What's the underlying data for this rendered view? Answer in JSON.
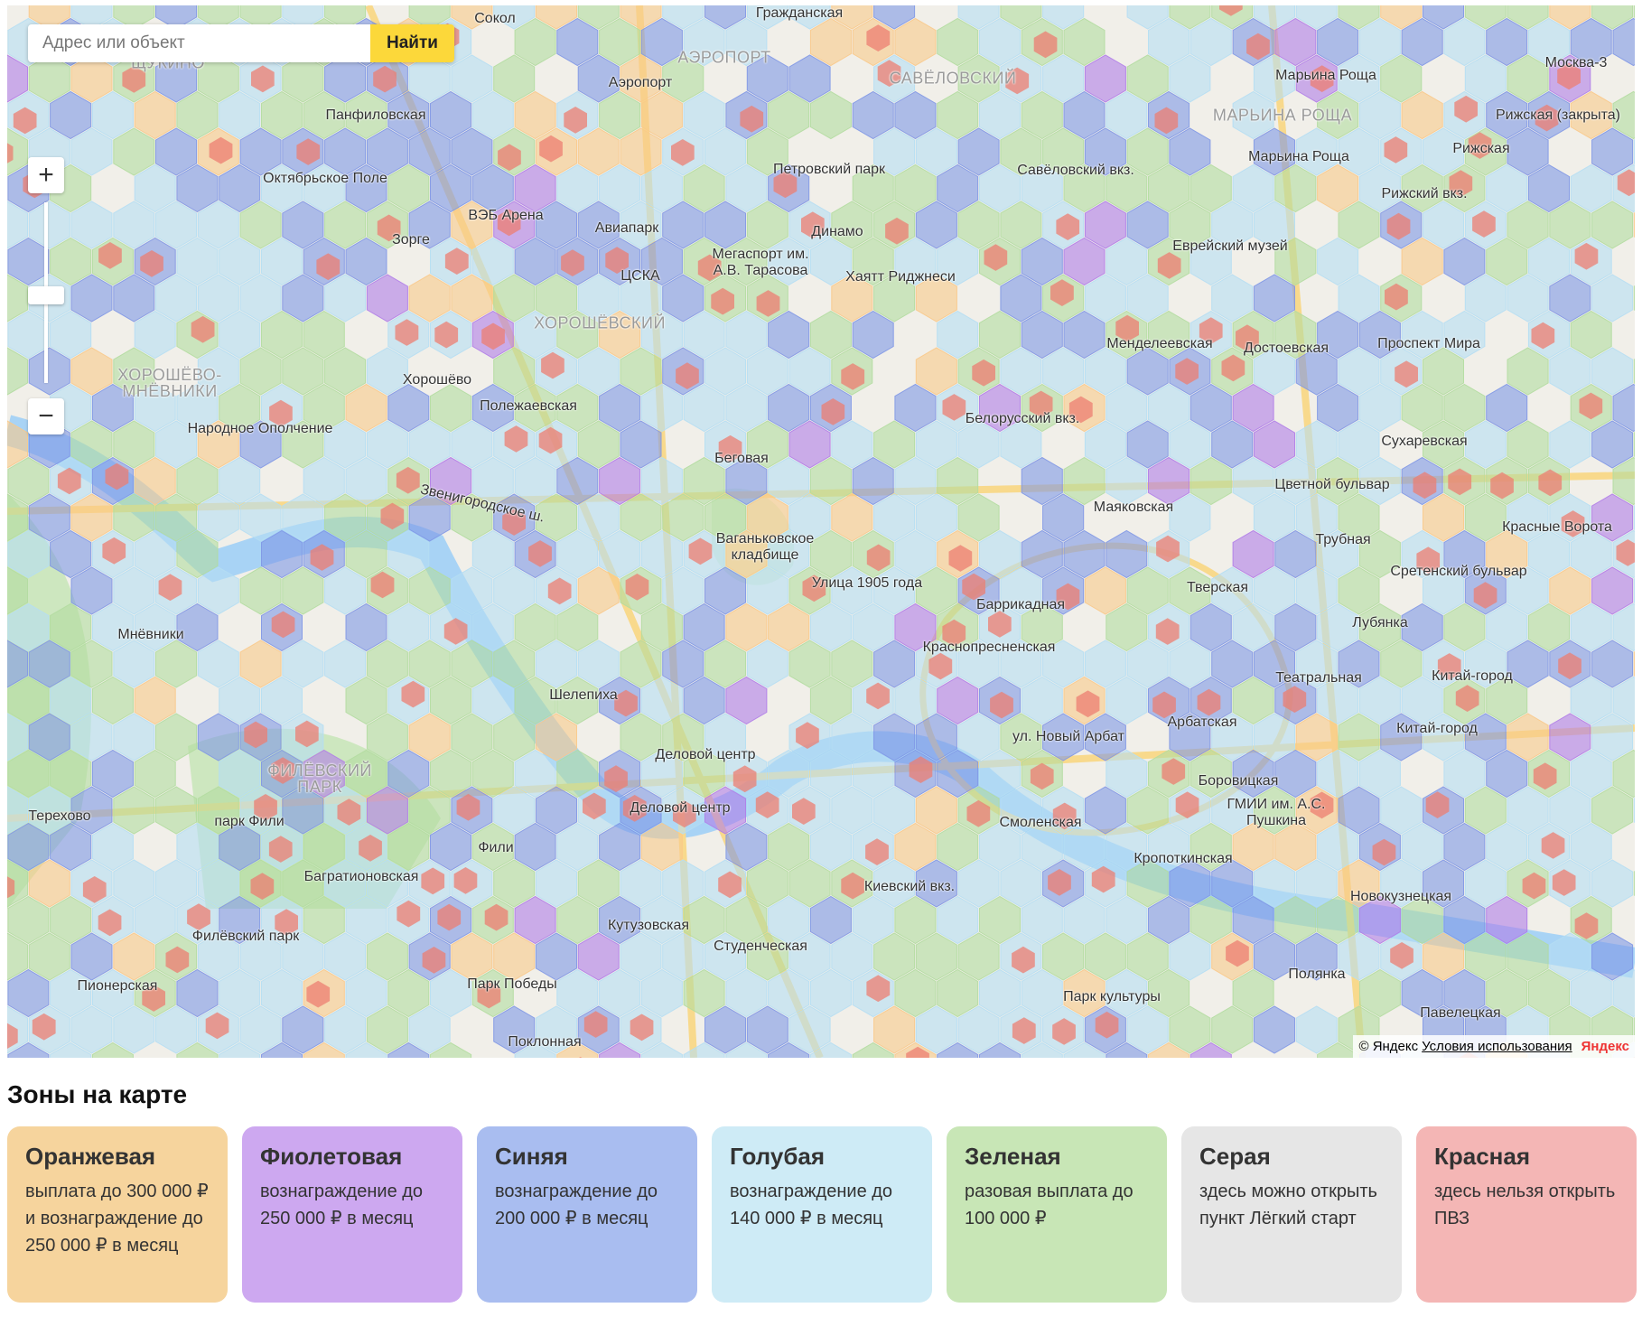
{
  "search": {
    "placeholder": "Адрес или объект",
    "button": "Найти"
  },
  "zoom": {
    "in": "+",
    "out": "−"
  },
  "map": {
    "labels": [
      "Гражданская",
      "Сокол",
      "ЩУКИНО",
      "АЭРОПОРТ",
      "Аэропорт",
      "Марьина Роща",
      "Москва-3",
      "Рижская (закрыта)",
      "Панфиловская",
      "САВЁЛОВСКИЙ",
      "МАРЬИНА РОЩА",
      "Марьина Роща",
      "Рижская",
      "Октябрьское Поле",
      "Петровский парк",
      "Савёловский вкз.",
      "Рижский вкз.",
      "ВЭБ Арена",
      "Авиапарк",
      "Зорге",
      "Динамо",
      "Мегаспорт им. А.В. Тарасова",
      "ЦСКА",
      "Хаятт Риджнеси",
      "Еврейский музей",
      "ХОРОШЁВСКИЙ",
      "Менделеевская",
      "Достоевская",
      "Проспект Мира",
      "ХОРОШЁВО-МНЁВНИКИ",
      "Хорошёво",
      "Полежаевская",
      "Белорусский вкз.",
      "Народное Ополчение",
      "Сухаревская",
      "Беговая",
      "Цветной бульвар",
      "Звенигородское ш.",
      "Маяковская",
      "Красные Ворота",
      "Ваганьковское кладбище",
      "Трубная",
      "Улица 1905 года",
      "Сретенский бульвар",
      "Тверская",
      "Баррикадная",
      "Мнёвники",
      "Лубянка",
      "Краснопресненская",
      "Театральная",
      "Китай-город",
      "Шелепиха",
      "Китай-город",
      "Арбатская",
      "ул. Новый Арбат",
      "Деловой центр",
      "Боровицкая",
      "Терехово",
      "ФИЛЁВСКИЙ ПАРК",
      "Деловой центр",
      "ГМИИ им. А.С. Пушкина",
      "парк Фили",
      "Смоленская",
      "Кропоткинская",
      "Фили",
      "Багратионовская",
      "Киевский вкз.",
      "Новокузнецкая",
      "Кутузовская",
      "Филёвский парк",
      "Студенческая",
      "Пионерская",
      "Парк Победы",
      "Парк культуры",
      "Полянка",
      "Павелецкая",
      "Поклонная"
    ],
    "copyright": "© Яндекс",
    "terms": "Условия использования",
    "logo": "Яндекс"
  },
  "legend": {
    "title": "Зоны на карте",
    "cards": [
      {
        "title": "Оранжевая",
        "text": "выплата до 300 000 ₽ и вознаграждение до 250 000 ₽ в месяц",
        "color": "#f6d49d",
        "hex": "#f9c98a"
      },
      {
        "title": "Фиолетовая",
        "text": "вознаграждение до 250 000 ₽ в месяц",
        "color": "#cda8f0",
        "hex": "#b07de8"
      },
      {
        "title": "Синяя",
        "text": "вознаграждение до 200 000 ₽ в месяц",
        "color": "#a9bdf0",
        "hex": "#7f97e6"
      },
      {
        "title": "Голубая",
        "text": "вознаграждение до 140 000 ₽ в месяц",
        "color": "#ceebf6",
        "hex": "#b5def3"
      },
      {
        "title": "Зеленая",
        "text": "разовая выплата до 100 000 ₽",
        "color": "#c8e6b6",
        "hex": "#b2dca0"
      },
      {
        "title": "Серая",
        "text": "здесь можно открыть пункт Лёгкий старт",
        "color": "#e6e6e6",
        "hex": "#d6d6d6"
      },
      {
        "title": "Красная",
        "text": "здесь нельзя открыть ПВЗ",
        "color": "#f4b6b5",
        "hex": "#ec7d72"
      }
    ]
  }
}
